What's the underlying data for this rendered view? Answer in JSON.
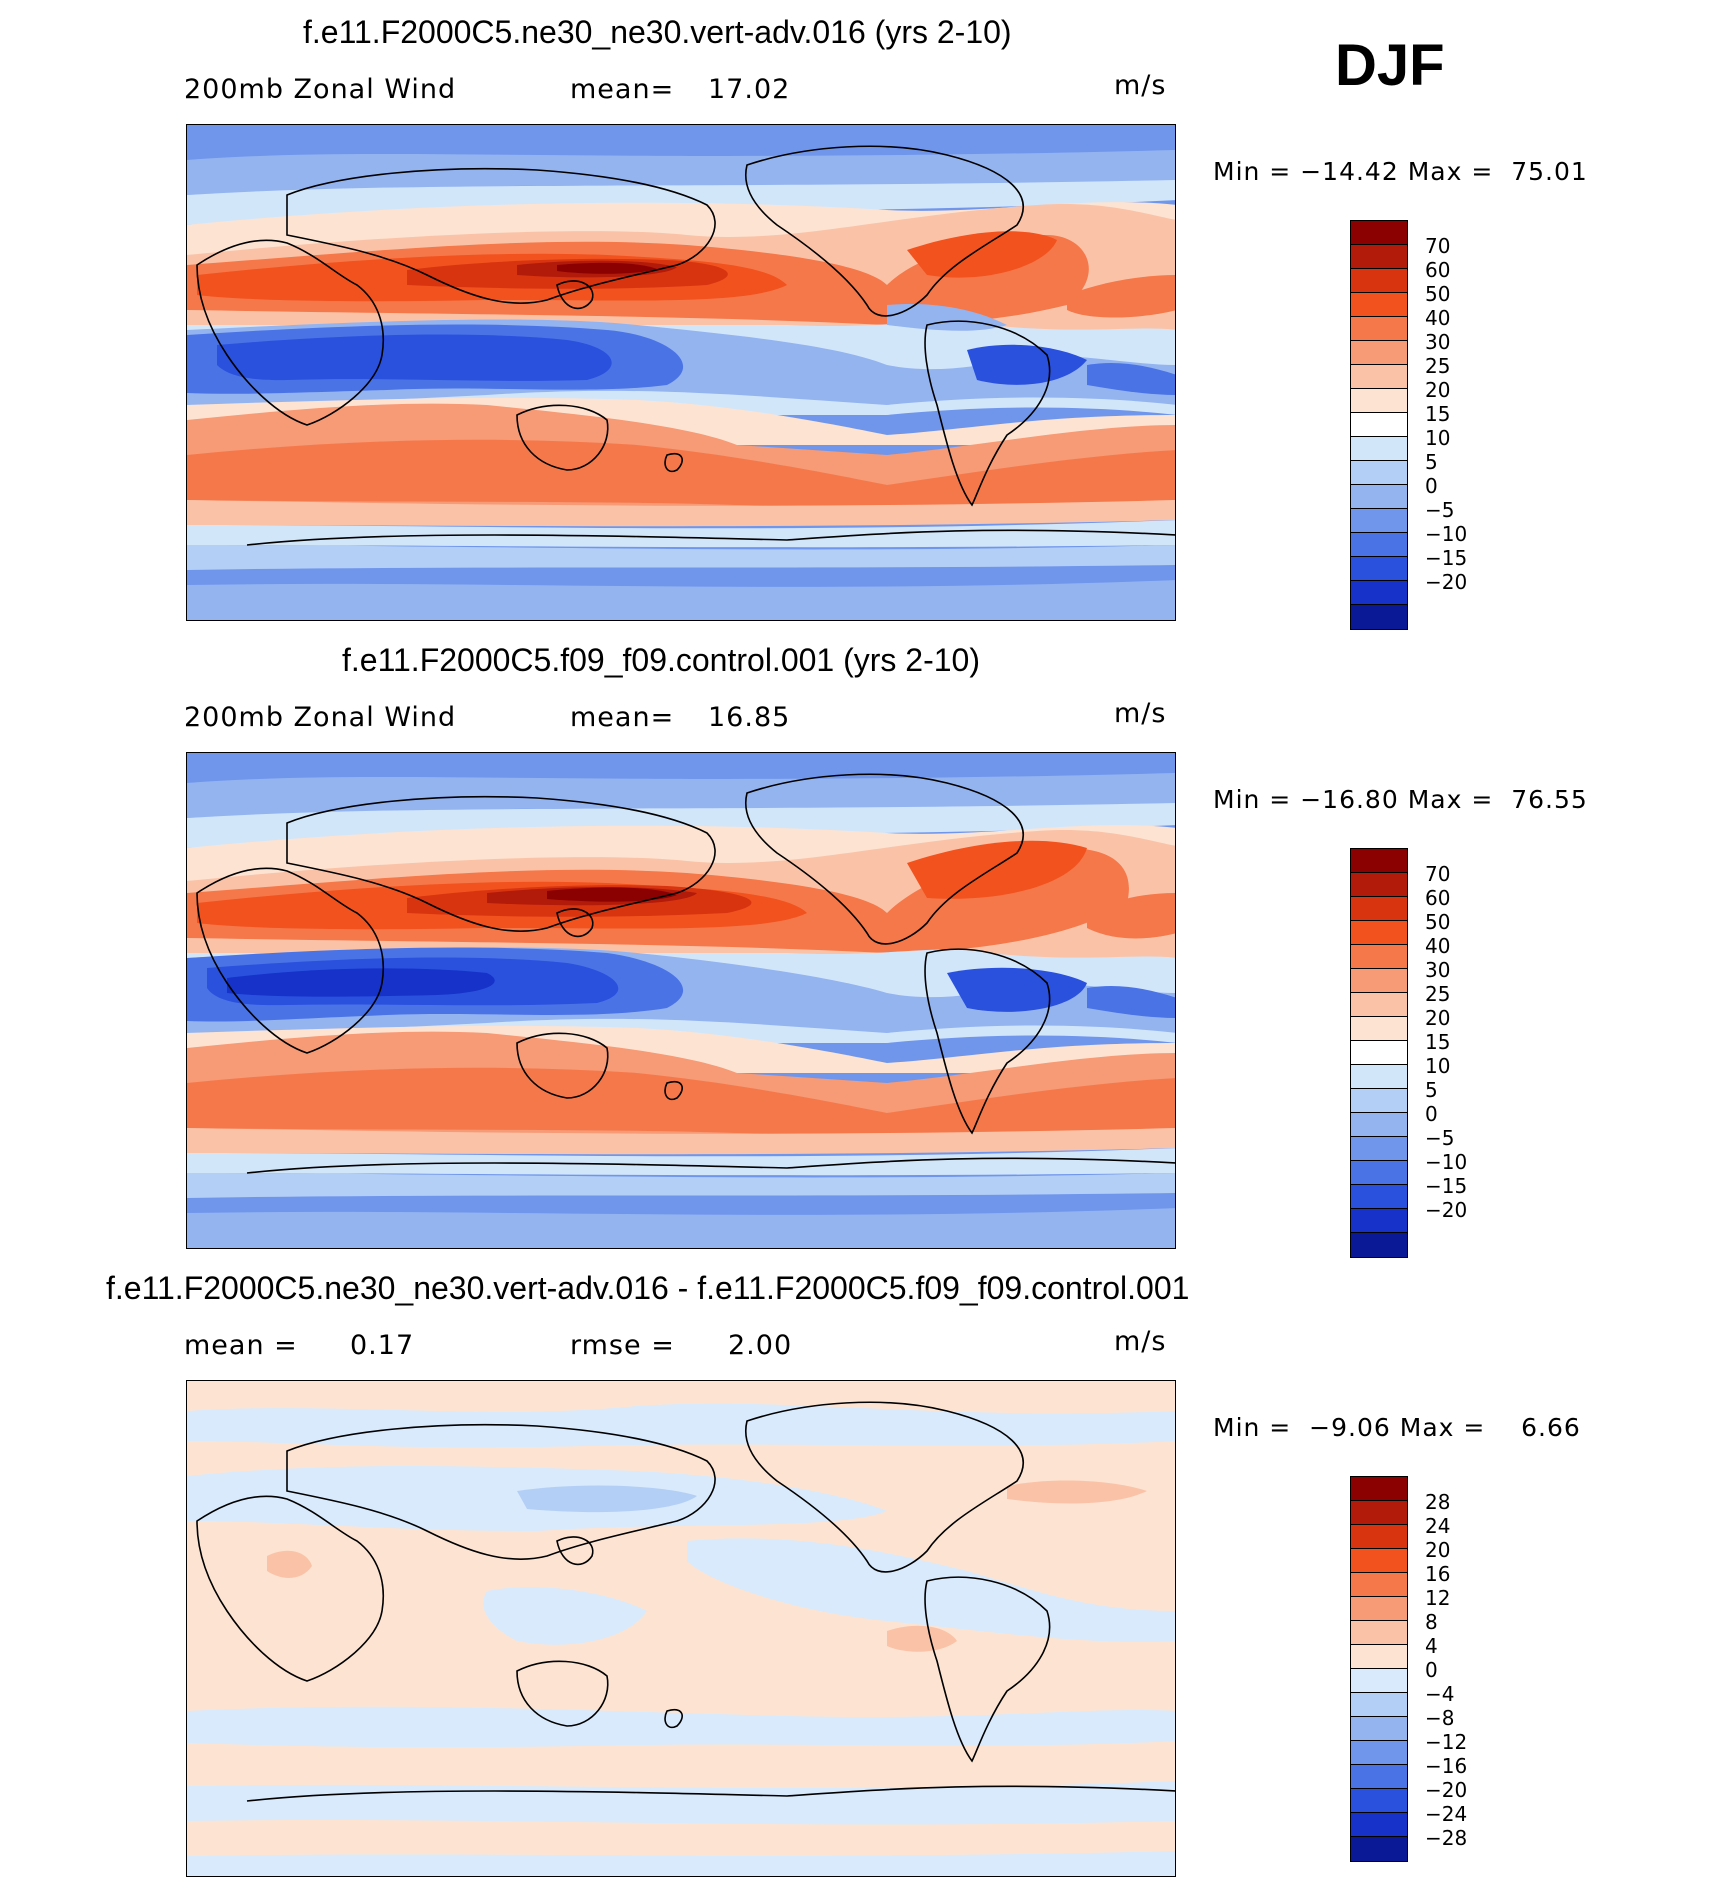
{
  "season": "DJF",
  "units": "m/s",
  "panels": [
    {
      "id": "test",
      "title": "f.e11.F2000C5.ne30_ne30.vert-adv.016 (yrs 2-10)",
      "variable": "200mb Zonal Wind",
      "stat1_label": "200mb Zonal Wind",
      "stat2_label": "mean=",
      "stat2_value": "17.02",
      "min_label": "Min =",
      "min_value": "−14.42",
      "max_label": "Max =",
      "max_value": "75.01",
      "units": "m/s",
      "colorbar": {
        "labels": [
          "70",
          "60",
          "50",
          "40",
          "30",
          "25",
          "20",
          "15",
          "10",
          "5",
          "0",
          "−5",
          "−10",
          "−15",
          "−20"
        ],
        "colors": [
          "#8b0000",
          "#b21a0a",
          "#d83410",
          "#f2521e",
          "#f5784a",
          "#f79a76",
          "#fac3a8",
          "#fde4d2",
          "#ffffff",
          "#d2e6fa",
          "#b4cff5",
          "#94b4f0",
          "#7096ec",
          "#4a73e6",
          "#2a50de",
          "#1632c8",
          "#0a1a96"
        ]
      }
    },
    {
      "id": "control",
      "title": "f.e11.F2000C5.f09_f09.control.001 (yrs 2-10)",
      "variable": "200mb Zonal Wind",
      "stat1_label": "200mb Zonal Wind",
      "stat2_label": "mean=",
      "stat2_value": "16.85",
      "min_label": "Min =",
      "min_value": "−16.80",
      "max_label": "Max =",
      "max_value": "76.55",
      "units": "m/s",
      "colorbar": {
        "labels": [
          "70",
          "60",
          "50",
          "40",
          "30",
          "25",
          "20",
          "15",
          "10",
          "5",
          "0",
          "−5",
          "−10",
          "−15",
          "−20"
        ],
        "colors": [
          "#8b0000",
          "#b21a0a",
          "#d83410",
          "#f2521e",
          "#f5784a",
          "#f79a76",
          "#fac3a8",
          "#fde4d2",
          "#ffffff",
          "#d2e6fa",
          "#b4cff5",
          "#94b4f0",
          "#7096ec",
          "#4a73e6",
          "#2a50de",
          "#1632c8",
          "#0a1a96"
        ]
      }
    },
    {
      "id": "difference",
      "title": "f.e11.F2000C5.ne30_ne30.vert-adv.016 - f.e11.F2000C5.f09_f09.control.001",
      "stat1_label": "mean =",
      "stat1_value": "0.17",
      "stat2_label": "rmse =",
      "stat2_value": "2.00",
      "min_label": "Min =",
      "min_value": "−9.06",
      "max_label": "Max =",
      "max_value": "6.66",
      "units": "m/s",
      "colorbar": {
        "labels": [
          "28",
          "24",
          "20",
          "16",
          "12",
          "8",
          "4",
          "0",
          "−4",
          "−8",
          "−12",
          "−16",
          "−20",
          "−24",
          "−28"
        ],
        "colors": [
          "#8b0000",
          "#b21a0a",
          "#d83410",
          "#f2521e",
          "#f5784a",
          "#f79a76",
          "#fac3a8",
          "#fde4d2",
          "#d8eafc",
          "#b4cff5",
          "#94b4f0",
          "#7096ec",
          "#4a73e6",
          "#2a50de",
          "#1632c8",
          "#0a1a96"
        ]
      }
    }
  ]
}
